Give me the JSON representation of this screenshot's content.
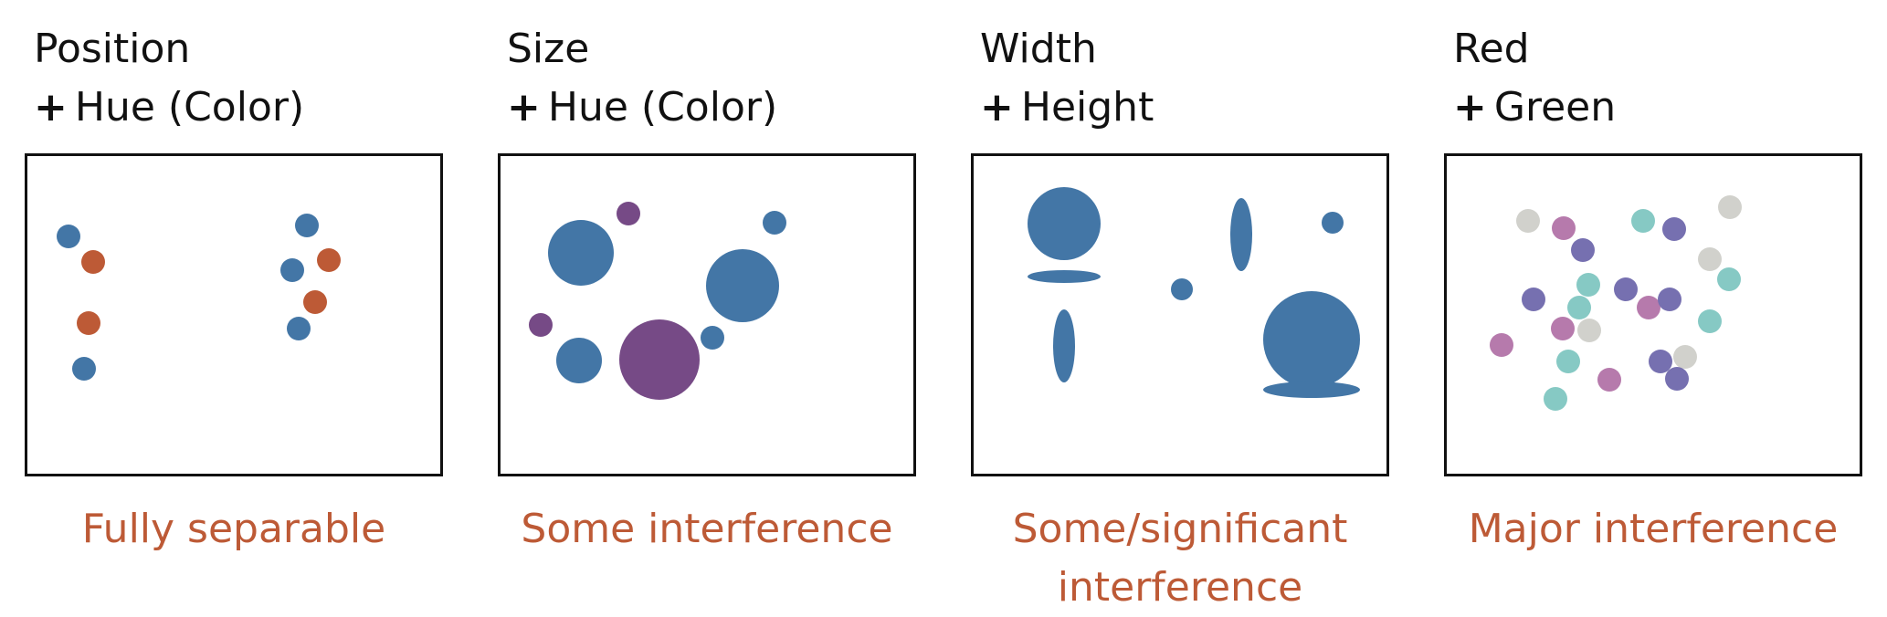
{
  "colors": {
    "blue": "#4376a6",
    "orange": "#bd5a36",
    "purple": "#764a86",
    "lavender": "#7670b0",
    "pink": "#b67aac",
    "teal": "#86c9c4",
    "gray": "#d1d1cc",
    "caption": "#bd5a36"
  },
  "panels": [
    {
      "title_line1": "Position",
      "title_line2": "Hue (Color)",
      "plus": "+",
      "caption": "Fully separable"
    },
    {
      "title_line1": "Size",
      "title_line2": "Hue (Color)",
      "plus": "+",
      "caption": "Some interference"
    },
    {
      "title_line1": "Width",
      "title_line2": "Height",
      "plus": "+",
      "caption": "Some/significant interference"
    },
    {
      "title_line1": "Red",
      "title_line2": "Green",
      "plus": "+",
      "caption": "Major interference"
    }
  ]
}
